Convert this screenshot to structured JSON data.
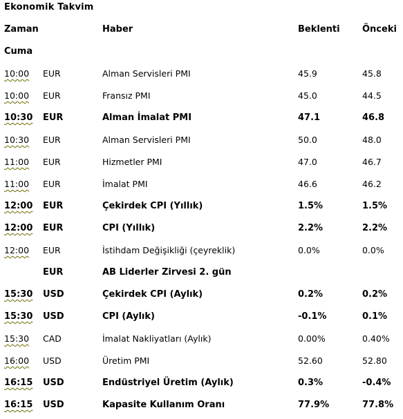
{
  "title": "Ekonomik Takvim",
  "columns": {
    "time": "Zaman",
    "news": "Haber",
    "expected": "Beklenti",
    "previous": "Önceki"
  },
  "day": "Cuma",
  "rows": [
    {
      "time": "10:00",
      "currency": "EUR",
      "news": "Alman Servisleri PMI",
      "expected": "45.9",
      "previous": "45.8",
      "bold": false
    },
    {
      "time": "10:00",
      "currency": "EUR",
      "news": "Fransız PMI",
      "expected": "45.0",
      "previous": "44.5",
      "bold": false
    },
    {
      "time": "10:30",
      "currency": "EUR",
      "news": "Alman İmalat PMI",
      "expected": "47.1",
      "previous": "46.8",
      "bold": true
    },
    {
      "time": "10:30",
      "currency": "EUR",
      "news": "Alman Servisleri PMI",
      "expected": "50.0",
      "previous": "48.0",
      "bold": false
    },
    {
      "time": "11:00",
      "currency": "EUR",
      "news": "Hizmetler PMI",
      "expected": "47.0",
      "previous": "46.7",
      "bold": false
    },
    {
      "time": "11:00",
      "currency": "EUR",
      "news": "İmalat PMI",
      "expected": "46.6",
      "previous": "46.2",
      "bold": false
    },
    {
      "time": "12:00",
      "currency": "EUR",
      "news": "Çekirdek CPI (Yıllık)",
      "expected": "1.5%",
      "previous": "1.5%",
      "bold": true
    },
    {
      "time": "12:00",
      "currency": "EUR",
      "news": "CPI (Yıllık)",
      "expected": "2.2%",
      "previous": "2.2%",
      "bold": true
    },
    {
      "time": "12:00",
      "currency": "EUR",
      "news": "İstihdam Değişikliği  (çeyreklik)",
      "expected": "0.0%",
      "previous": "0.0%",
      "bold": false
    },
    {
      "time": "",
      "currency": "EUR",
      "news": "AB Liderler Zirvesi 2. gün",
      "expected": "",
      "previous": "",
      "bold": true
    },
    {
      "time": "15:30",
      "currency": "USD",
      "news": "Çekirdek CPI (Aylık)",
      "expected": "0.2%",
      "previous": "0.2%",
      "bold": true
    },
    {
      "time": "15:30",
      "currency": "USD",
      "news": "CPI (Aylık)",
      "expected": "-0.1%",
      "previous": "0.1%",
      "bold": true
    },
    {
      "time": "15:30",
      "currency": "CAD",
      "news": "İmalat Nakliyatları (Aylık)",
      "expected": "0.00%",
      "previous": "0.40%",
      "bold": false
    },
    {
      "time": "16:00",
      "currency": "USD",
      "news": "Üretim PMI",
      "expected": "52.60",
      "previous": "52.80",
      "bold": false
    },
    {
      "time": "16:15",
      "currency": "USD",
      "news": "Endüstriyel Üretim (Aylık)",
      "expected": "0.3%",
      "previous": "-0.4%",
      "bold": true
    },
    {
      "time": "16:15",
      "currency": "USD",
      "news": "Kapasite Kullanım  Oranı",
      "expected": "77.9%",
      "previous": "77.8%",
      "bold": true
    }
  ]
}
